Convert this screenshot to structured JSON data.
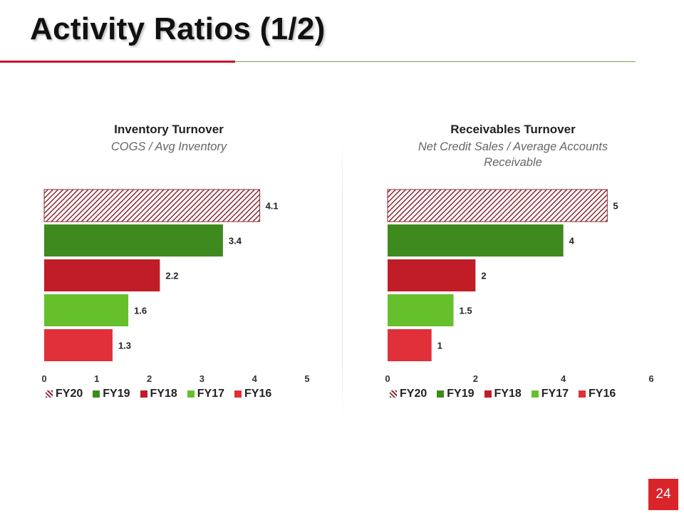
{
  "slide": {
    "title": "Activity Ratios (1/2)",
    "page_number": "24",
    "accent_red": "#c8102e",
    "accent_green": "#70ad47"
  },
  "chart_data": [
    {
      "type": "bar",
      "orientation": "horizontal",
      "title": "Inventory Turnover",
      "subtitle": "COGS / Avg Inventory",
      "categories": [
        "FY20",
        "FY19",
        "FY18",
        "FY17",
        "FY16"
      ],
      "values": [
        4.1,
        3.4,
        2.2,
        1.6,
        1.3
      ],
      "value_labels": [
        "4.1",
        "3.4",
        "2.2",
        "1.6",
        "1.3"
      ],
      "xlim": [
        0,
        5
      ],
      "ticks": [
        0,
        1,
        2,
        3,
        4,
        5
      ],
      "grid": false,
      "legend_position": "bottom",
      "colors": [
        "#8b2a32",
        "#3f8a1f",
        "#c01d26",
        "#66c02b",
        "#e0303a"
      ],
      "hatched": [
        "FY20"
      ]
    },
    {
      "type": "bar",
      "orientation": "horizontal",
      "title": "Receivables Turnover",
      "subtitle": "Net Credit Sales / Average Accounts Receivable",
      "categories": [
        "FY20",
        "FY19",
        "FY18",
        "FY17",
        "FY16"
      ],
      "values": [
        5,
        4,
        2,
        1.5,
        1
      ],
      "value_labels": [
        "5",
        "4",
        "2",
        "1.5",
        "1"
      ],
      "xlim": [
        0,
        6
      ],
      "ticks": [
        0,
        2,
        4,
        6
      ],
      "grid": false,
      "legend_position": "bottom",
      "colors": [
        "#8b2a32",
        "#3f8a1f",
        "#c01d26",
        "#66c02b",
        "#e0303a"
      ],
      "hatched": [
        "FY20"
      ]
    }
  ]
}
